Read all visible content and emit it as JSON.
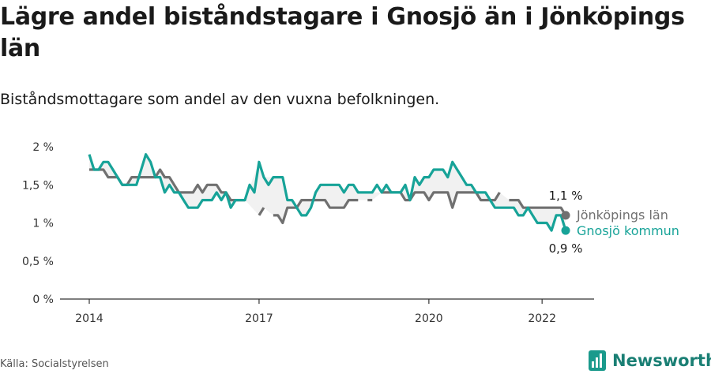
{
  "title": "Lägre andel biståndstagare i Gnosjö än i Jönköpings län",
  "subtitle": "Biståndsmottagare som andel av den vuxna befolkningen.",
  "source": "Källa: Socialstyrelsen",
  "brand": "Newsworthy",
  "colors": {
    "gnosjo": "#17a398",
    "jonkoping": "#707070",
    "axis": "#333333",
    "shade": "#d9d9d9"
  },
  "chart_data": {
    "type": "line",
    "ylim": [
      0,
      2
    ],
    "y_ticks": [
      {
        "value": 0,
        "label": "0 %"
      },
      {
        "value": 0.5,
        "label": "0,5 %"
      },
      {
        "value": 1,
        "label": "1 %"
      },
      {
        "value": 1.5,
        "label": "1,5 %"
      },
      {
        "value": 2,
        "label": "2 %"
      }
    ],
    "x_range": [
      "2014-01",
      "2022-07"
    ],
    "x_ticks": [
      {
        "value": "2014-01",
        "label": "2014"
      },
      {
        "value": "2017-01",
        "label": "2017"
      },
      {
        "value": "2020-01",
        "label": "2020"
      },
      {
        "value": "2022-01",
        "label": "2022"
      }
    ],
    "series": [
      {
        "name": "Jönköpings län",
        "key": "jonkoping",
        "end_label": "1,1 %",
        "points": [
          [
            "2014-01",
            1.7
          ],
          [
            "2014-02",
            1.7
          ],
          [
            "2014-03",
            1.7
          ],
          [
            "2014-04",
            1.7
          ],
          [
            "2014-05",
            1.6
          ],
          [
            "2014-06",
            1.6
          ],
          [
            "2014-07",
            1.6
          ],
          [
            "2014-08",
            1.5
          ],
          [
            "2014-09",
            1.5
          ],
          [
            "2014-10",
            1.6
          ],
          [
            "2014-11",
            1.6
          ],
          [
            "2014-12",
            1.6
          ],
          [
            "2015-01",
            1.6
          ],
          [
            "2015-02",
            1.6
          ],
          [
            "2015-03",
            1.6
          ],
          [
            "2015-04",
            1.7
          ],
          [
            "2015-05",
            1.6
          ],
          [
            "2015-06",
            1.6
          ],
          [
            "2015-07",
            1.5
          ],
          [
            "2015-08",
            1.4
          ],
          [
            "2015-09",
            1.4
          ],
          [
            "2015-10",
            1.4
          ],
          [
            "2015-11",
            1.4
          ],
          [
            "2015-12",
            1.5
          ],
          [
            "2016-01",
            1.4
          ],
          [
            "2016-02",
            1.5
          ],
          [
            "2016-03",
            1.5
          ],
          [
            "2016-04",
            1.5
          ],
          [
            "2016-05",
            1.4
          ],
          [
            "2016-06",
            1.4
          ],
          [
            "2016-07",
            1.3
          ],
          [
            "2016-08",
            1.3
          ],
          [
            "2016-09",
            1.3
          ],
          [
            "2016-10",
            1.3
          ],
          [
            "2016-11",
            null
          ],
          [
            "2016-12",
            null
          ],
          [
            "2017-01",
            1.1
          ],
          [
            "2017-02",
            1.2
          ],
          [
            "2017-03",
            null
          ],
          [
            "2017-04",
            1.1
          ],
          [
            "2017-05",
            1.1
          ],
          [
            "2017-06",
            1.0
          ],
          [
            "2017-07",
            1.2
          ],
          [
            "2017-08",
            1.2
          ],
          [
            "2017-09",
            1.2
          ],
          [
            "2017-10",
            1.3
          ],
          [
            "2017-11",
            1.3
          ],
          [
            "2017-12",
            1.3
          ],
          [
            "2018-01",
            1.3
          ],
          [
            "2018-02",
            1.3
          ],
          [
            "2018-03",
            1.3
          ],
          [
            "2018-04",
            1.2
          ],
          [
            "2018-05",
            1.2
          ],
          [
            "2018-06",
            1.2
          ],
          [
            "2018-07",
            1.2
          ],
          [
            "2018-08",
            1.3
          ],
          [
            "2018-09",
            1.3
          ],
          [
            "2018-10",
            1.3
          ],
          [
            "2018-11",
            null
          ],
          [
            "2018-12",
            1.3
          ],
          [
            "2019-01",
            1.3
          ],
          [
            "2019-02",
            null
          ],
          [
            "2019-03",
            1.4
          ],
          [
            "2019-04",
            1.4
          ],
          [
            "2019-05",
            1.4
          ],
          [
            "2019-06",
            1.4
          ],
          [
            "2019-07",
            1.4
          ],
          [
            "2019-08",
            1.3
          ],
          [
            "2019-09",
            1.3
          ],
          [
            "2019-10",
            1.4
          ],
          [
            "2019-11",
            1.4
          ],
          [
            "2019-12",
            1.4
          ],
          [
            "2020-01",
            1.3
          ],
          [
            "2020-02",
            1.4
          ],
          [
            "2020-03",
            1.4
          ],
          [
            "2020-04",
            1.4
          ],
          [
            "2020-05",
            1.4
          ],
          [
            "2020-06",
            1.2
          ],
          [
            "2020-07",
            1.4
          ],
          [
            "2020-08",
            1.4
          ],
          [
            "2020-09",
            1.4
          ],
          [
            "2020-10",
            1.4
          ],
          [
            "2020-11",
            1.4
          ],
          [
            "2020-12",
            1.3
          ],
          [
            "2021-01",
            1.3
          ],
          [
            "2021-02",
            1.3
          ],
          [
            "2021-03",
            1.3
          ],
          [
            "2021-04",
            1.4
          ],
          [
            "2021-05",
            null
          ],
          [
            "2021-06",
            1.3
          ],
          [
            "2021-07",
            1.3
          ],
          [
            "2021-08",
            1.3
          ],
          [
            "2021-09",
            1.2
          ],
          [
            "2021-10",
            1.2
          ],
          [
            "2021-11",
            1.2
          ],
          [
            "2021-12",
            1.2
          ],
          [
            "2022-01",
            1.2
          ],
          [
            "2022-02",
            1.2
          ],
          [
            "2022-03",
            1.2
          ],
          [
            "2022-04",
            1.2
          ],
          [
            "2022-05",
            1.2
          ],
          [
            "2022-06",
            1.1
          ]
        ]
      },
      {
        "name": "Gnosjö kommun",
        "key": "gnosjo",
        "end_label": "0,9 %",
        "points": [
          [
            "2014-01",
            1.9
          ],
          [
            "2014-02",
            1.7
          ],
          [
            "2014-03",
            1.7
          ],
          [
            "2014-04",
            1.8
          ],
          [
            "2014-05",
            1.8
          ],
          [
            "2014-06",
            1.7
          ],
          [
            "2014-07",
            1.6
          ],
          [
            "2014-08",
            1.5
          ],
          [
            "2014-09",
            1.5
          ],
          [
            "2014-10",
            1.5
          ],
          [
            "2014-11",
            1.5
          ],
          [
            "2014-12",
            1.7
          ],
          [
            "2015-01",
            1.9
          ],
          [
            "2015-02",
            1.8
          ],
          [
            "2015-03",
            1.6
          ],
          [
            "2015-04",
            1.6
          ],
          [
            "2015-05",
            1.4
          ],
          [
            "2015-06",
            1.5
          ],
          [
            "2015-07",
            1.4
          ],
          [
            "2015-08",
            1.4
          ],
          [
            "2015-09",
            1.3
          ],
          [
            "2015-10",
            1.2
          ],
          [
            "2015-11",
            1.2
          ],
          [
            "2015-12",
            1.2
          ],
          [
            "2016-01",
            1.3
          ],
          [
            "2016-02",
            1.3
          ],
          [
            "2016-03",
            1.3
          ],
          [
            "2016-04",
            1.4
          ],
          [
            "2016-05",
            1.3
          ],
          [
            "2016-06",
            1.4
          ],
          [
            "2016-07",
            1.2
          ],
          [
            "2016-08",
            1.3
          ],
          [
            "2016-09",
            1.3
          ],
          [
            "2016-10",
            1.3
          ],
          [
            "2016-11",
            1.5
          ],
          [
            "2016-12",
            1.4
          ],
          [
            "2017-01",
            1.8
          ],
          [
            "2017-02",
            1.6
          ],
          [
            "2017-03",
            1.5
          ],
          [
            "2017-04",
            1.6
          ],
          [
            "2017-05",
            1.6
          ],
          [
            "2017-06",
            1.6
          ],
          [
            "2017-07",
            1.3
          ],
          [
            "2017-08",
            1.3
          ],
          [
            "2017-09",
            1.2
          ],
          [
            "2017-10",
            1.1
          ],
          [
            "2017-11",
            1.1
          ],
          [
            "2017-12",
            1.2
          ],
          [
            "2018-01",
            1.4
          ],
          [
            "2018-02",
            1.5
          ],
          [
            "2018-03",
            1.5
          ],
          [
            "2018-04",
            1.5
          ],
          [
            "2018-05",
            1.5
          ],
          [
            "2018-06",
            1.5
          ],
          [
            "2018-07",
            1.4
          ],
          [
            "2018-08",
            1.5
          ],
          [
            "2018-09",
            1.5
          ],
          [
            "2018-10",
            1.4
          ],
          [
            "2018-11",
            1.4
          ],
          [
            "2018-12",
            1.4
          ],
          [
            "2019-01",
            1.4
          ],
          [
            "2019-02",
            1.5
          ],
          [
            "2019-03",
            1.4
          ],
          [
            "2019-04",
            1.5
          ],
          [
            "2019-05",
            1.4
          ],
          [
            "2019-06",
            1.4
          ],
          [
            "2019-07",
            1.4
          ],
          [
            "2019-08",
            1.5
          ],
          [
            "2019-09",
            1.3
          ],
          [
            "2019-10",
            1.6
          ],
          [
            "2019-11",
            1.5
          ],
          [
            "2019-12",
            1.6
          ],
          [
            "2020-01",
            1.6
          ],
          [
            "2020-02",
            1.7
          ],
          [
            "2020-03",
            1.7
          ],
          [
            "2020-04",
            1.7
          ],
          [
            "2020-05",
            1.6
          ],
          [
            "2020-06",
            1.8
          ],
          [
            "2020-07",
            1.7
          ],
          [
            "2020-08",
            1.6
          ],
          [
            "2020-09",
            1.5
          ],
          [
            "2020-10",
            1.5
          ],
          [
            "2020-11",
            1.4
          ],
          [
            "2020-12",
            1.4
          ],
          [
            "2021-01",
            1.4
          ],
          [
            "2021-02",
            1.3
          ],
          [
            "2021-03",
            1.2
          ],
          [
            "2021-04",
            1.2
          ],
          [
            "2021-05",
            1.2
          ],
          [
            "2021-06",
            1.2
          ],
          [
            "2021-07",
            1.2
          ],
          [
            "2021-08",
            1.1
          ],
          [
            "2021-09",
            1.1
          ],
          [
            "2021-10",
            1.2
          ],
          [
            "2021-11",
            1.1
          ],
          [
            "2021-12",
            1.0
          ],
          [
            "2022-01",
            1.0
          ],
          [
            "2022-02",
            1.0
          ],
          [
            "2022-03",
            0.9
          ],
          [
            "2022-04",
            1.1
          ],
          [
            "2022-05",
            1.1
          ],
          [
            "2022-06",
            0.9
          ]
        ]
      }
    ]
  }
}
